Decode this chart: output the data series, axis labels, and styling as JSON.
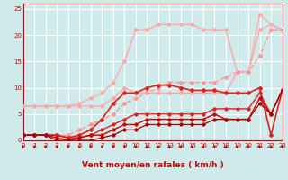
{
  "xlabel": "Vent moyen/en rafales ( km/h )",
  "xlim": [
    0,
    23
  ],
  "ylim": [
    0,
    26
  ],
  "xticks": [
    0,
    1,
    2,
    3,
    4,
    5,
    6,
    7,
    8,
    9,
    10,
    11,
    12,
    13,
    14,
    15,
    16,
    17,
    18,
    19,
    20,
    21,
    22,
    23
  ],
  "yticks": [
    0,
    5,
    10,
    15,
    20,
    25
  ],
  "bg_color": "#ceeaea",
  "grid_color": "#b0d8d8",
  "lines": [
    {
      "x": [
        0,
        1,
        2,
        3,
        4,
        5,
        6,
        7,
        8,
        9,
        10,
        11,
        12,
        13,
        14,
        15,
        16,
        17,
        18,
        19,
        20,
        21,
        22,
        23
      ],
      "y": [
        6.5,
        6.5,
        6.5,
        6.5,
        6.5,
        6.5,
        6.5,
        6.5,
        8,
        10,
        9,
        9,
        9,
        9,
        9,
        9,
        9,
        9,
        9,
        13,
        13,
        21,
        22,
        21
      ],
      "color": "#ffaaaa",
      "lw": 1.0,
      "marker": "D",
      "ms": 2.0,
      "alpha": 1.0,
      "ls": "-"
    },
    {
      "x": [
        0,
        1,
        2,
        3,
        4,
        5,
        6,
        7,
        8,
        9,
        10,
        11,
        12,
        13,
        14,
        15,
        16,
        17,
        18,
        19,
        20,
        21,
        22,
        23
      ],
      "y": [
        6.5,
        6.5,
        6.5,
        6.5,
        6.5,
        7,
        8,
        9,
        11,
        15,
        21,
        21,
        22,
        22,
        22,
        22,
        21,
        21,
        21,
        13,
        13,
        24,
        22,
        21
      ],
      "color": "#ffaaaa",
      "lw": 1.0,
      "marker": "D",
      "ms": 2.0,
      "alpha": 1.0,
      "ls": "-"
    },
    {
      "x": [
        0,
        1,
        2,
        3,
        4,
        5,
        6,
        7,
        8,
        9,
        10,
        11,
        12,
        13,
        14,
        15,
        16,
        17,
        18,
        19,
        20,
        21,
        22,
        23
      ],
      "y": [
        1,
        1,
        1,
        1,
        1,
        2,
        3,
        4,
        5,
        7,
        8,
        9,
        10,
        11,
        11,
        11,
        11,
        11,
        12,
        13,
        13,
        16,
        21,
        21
      ],
      "color": "#ff9999",
      "lw": 1.0,
      "marker": "D",
      "ms": 2.0,
      "alpha": 1.0,
      "ls": "--"
    },
    {
      "x": [
        0,
        1,
        2,
        3,
        4,
        5,
        6,
        7,
        8,
        9,
        10,
        11,
        12,
        13,
        14,
        15,
        16,
        17,
        18,
        19,
        20,
        21,
        22,
        23
      ],
      "y": [
        1,
        1,
        1,
        1,
        0.5,
        1,
        2,
        4,
        7,
        9,
        9,
        10,
        10.5,
        10.5,
        10,
        9.5,
        9.5,
        9.5,
        9,
        9,
        9,
        10,
        1,
        9.5
      ],
      "color": "#dd2222",
      "lw": 1.2,
      "marker": "D",
      "ms": 2.0,
      "alpha": 1.0,
      "ls": "-"
    },
    {
      "x": [
        0,
        1,
        2,
        3,
        4,
        5,
        6,
        7,
        8,
        9,
        10,
        11,
        12,
        13,
        14,
        15,
        16,
        17,
        18,
        19,
        20,
        21,
        22,
        23
      ],
      "y": [
        1,
        1,
        1,
        1,
        0.5,
        0.5,
        1,
        2,
        3,
        4,
        5,
        5,
        5,
        5,
        5,
        5,
        5,
        6,
        6,
        6,
        6,
        9,
        5,
        9.5
      ],
      "color": "#dd2222",
      "lw": 1.0,
      "marker": "D",
      "ms": 1.8,
      "alpha": 1.0,
      "ls": "-"
    },
    {
      "x": [
        0,
        1,
        2,
        3,
        4,
        5,
        6,
        7,
        8,
        9,
        10,
        11,
        12,
        13,
        14,
        15,
        16,
        17,
        18,
        19,
        20,
        21,
        22,
        23
      ],
      "y": [
        1,
        1,
        1,
        0.5,
        0,
        0.5,
        1,
        1,
        2,
        3,
        3,
        4,
        4,
        4,
        4,
        4,
        4,
        5,
        4,
        4,
        4,
        8,
        5,
        9.5
      ],
      "color": "#cc0000",
      "lw": 1.0,
      "marker": "D",
      "ms": 1.8,
      "alpha": 1.0,
      "ls": "-"
    },
    {
      "x": [
        0,
        1,
        2,
        3,
        4,
        5,
        6,
        7,
        8,
        9,
        10,
        11,
        12,
        13,
        14,
        15,
        16,
        17,
        18,
        19,
        20,
        21,
        22,
        23
      ],
      "y": [
        1,
        1,
        1,
        0,
        0,
        0,
        0,
        0.5,
        1,
        2,
        2,
        3,
        3,
        3,
        3,
        3,
        3,
        4,
        4,
        4,
        4,
        7,
        5,
        9.5
      ],
      "color": "#aa0000",
      "lw": 0.9,
      "marker": "D",
      "ms": 1.8,
      "alpha": 1.0,
      "ls": "-"
    }
  ],
  "arrow_color": "#cc0000",
  "tick_color": "#cc0000",
  "label_color": "#cc0000",
  "xlabel_fontsize": 6.5,
  "tick_fontsize": 5.0
}
